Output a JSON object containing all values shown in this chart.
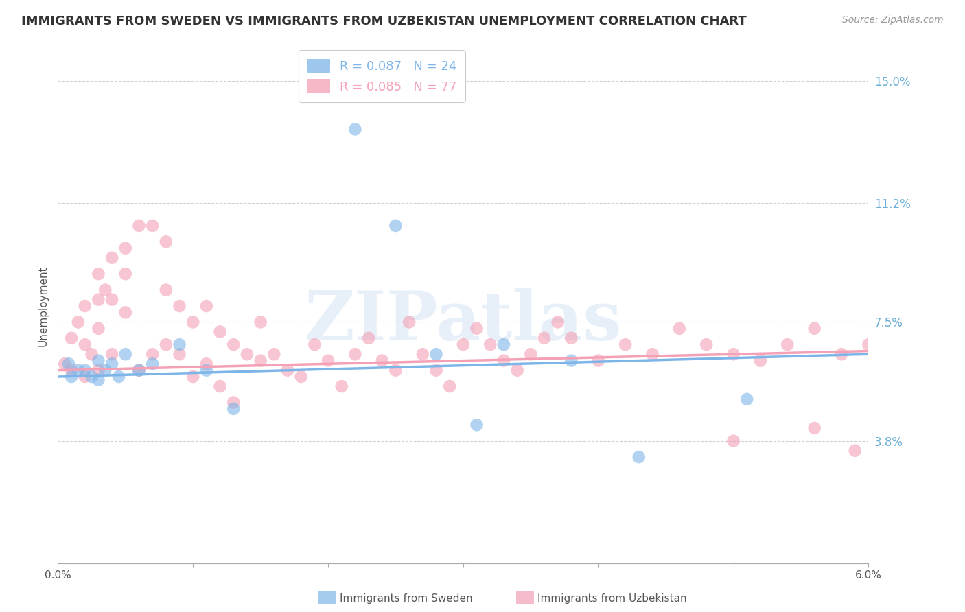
{
  "title": "IMMIGRANTS FROM SWEDEN VS IMMIGRANTS FROM UZBEKISTAN UNEMPLOYMENT CORRELATION CHART",
  "source": "Source: ZipAtlas.com",
  "ylabel": "Unemployment",
  "xlim": [
    0.0,
    0.06
  ],
  "ylim": [
    0.0,
    0.16
  ],
  "yticks": [
    0.038,
    0.075,
    0.112,
    0.15
  ],
  "ytick_labels": [
    "3.8%",
    "7.5%",
    "11.2%",
    "15.0%"
  ],
  "sweden_color": "#7EB5E8",
  "uzbekistan_color": "#F4A0B5",
  "sweden_label": "Immigrants from Sweden",
  "uzbekistan_label": "Immigrants from Uzbekistan",
  "sweden_R": "0.087",
  "sweden_N": "24",
  "uzbekistan_R": "0.085",
  "uzbekistan_N": "77",
  "watermark": "ZIPatlas",
  "background_color": "#ffffff",
  "axis_label_color": "#6baed6",
  "grid_color": "#d0d0d0",
  "title_color": "#333333",
  "title_fontsize": 13,
  "ylabel_fontsize": 11,
  "sweden_x": [
    0.0008,
    0.001,
    0.0015,
    0.002,
    0.0025,
    0.003,
    0.003,
    0.0035,
    0.004,
    0.0045,
    0.005,
    0.006,
    0.007,
    0.009,
    0.011,
    0.013,
    0.022,
    0.025,
    0.028,
    0.031,
    0.033,
    0.038,
    0.043,
    0.051
  ],
  "sweden_y": [
    0.062,
    0.058,
    0.06,
    0.06,
    0.058,
    0.063,
    0.057,
    0.06,
    0.062,
    0.058,
    0.065,
    0.06,
    0.062,
    0.068,
    0.06,
    0.048,
    0.135,
    0.105,
    0.065,
    0.043,
    0.068,
    0.063,
    0.033,
    0.051
  ],
  "uzbekistan_x": [
    0.0005,
    0.001,
    0.001,
    0.0015,
    0.002,
    0.002,
    0.002,
    0.0025,
    0.003,
    0.003,
    0.003,
    0.003,
    0.0035,
    0.004,
    0.004,
    0.004,
    0.005,
    0.005,
    0.005,
    0.006,
    0.006,
    0.007,
    0.007,
    0.008,
    0.008,
    0.008,
    0.009,
    0.009,
    0.01,
    0.01,
    0.011,
    0.011,
    0.012,
    0.012,
    0.013,
    0.013,
    0.014,
    0.015,
    0.015,
    0.016,
    0.017,
    0.018,
    0.019,
    0.02,
    0.021,
    0.022,
    0.023,
    0.024,
    0.025,
    0.026,
    0.027,
    0.028,
    0.029,
    0.03,
    0.031,
    0.032,
    0.033,
    0.034,
    0.035,
    0.036,
    0.037,
    0.038,
    0.04,
    0.042,
    0.044,
    0.046,
    0.048,
    0.05,
    0.052,
    0.054,
    0.056,
    0.058,
    0.06,
    0.062,
    0.056,
    0.05,
    0.059
  ],
  "uzbekistan_y": [
    0.062,
    0.07,
    0.06,
    0.075,
    0.08,
    0.068,
    0.058,
    0.065,
    0.09,
    0.082,
    0.073,
    0.06,
    0.085,
    0.095,
    0.082,
    0.065,
    0.098,
    0.09,
    0.078,
    0.105,
    0.06,
    0.105,
    0.065,
    0.1,
    0.085,
    0.068,
    0.08,
    0.065,
    0.075,
    0.058,
    0.08,
    0.062,
    0.072,
    0.055,
    0.068,
    0.05,
    0.065,
    0.063,
    0.075,
    0.065,
    0.06,
    0.058,
    0.068,
    0.063,
    0.055,
    0.065,
    0.07,
    0.063,
    0.06,
    0.075,
    0.065,
    0.06,
    0.055,
    0.068,
    0.073,
    0.068,
    0.063,
    0.06,
    0.065,
    0.07,
    0.075,
    0.07,
    0.063,
    0.068,
    0.065,
    0.073,
    0.068,
    0.065,
    0.063,
    0.068,
    0.073,
    0.065,
    0.068,
    0.07,
    0.042,
    0.038,
    0.035
  ]
}
